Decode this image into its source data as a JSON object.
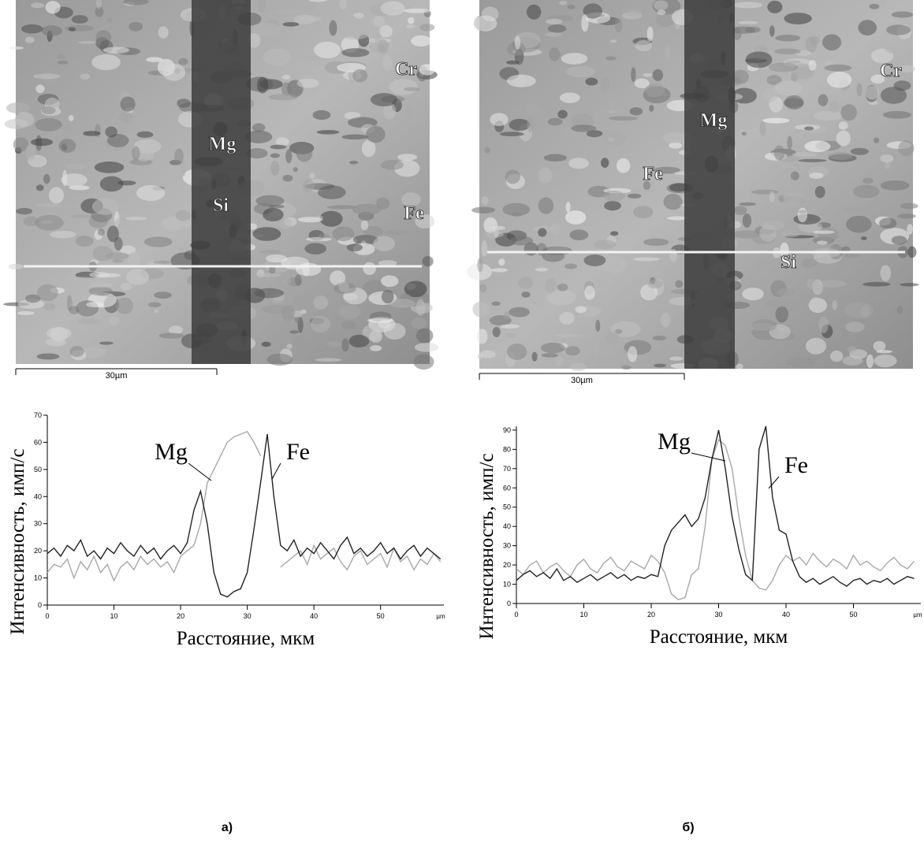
{
  "micrographs": [
    {
      "labels": [
        "Cr",
        "Mg",
        "Si",
        "Fe"
      ],
      "scale_bar": "30µm"
    },
    {
      "labels": [
        "Cr",
        "Mg",
        "Fe",
        "Si"
      ],
      "scale_bar": "30µm"
    }
  ],
  "chart_data": [
    {
      "type": "line",
      "caption": "а)",
      "x_label": "Расстояние, мкм",
      "y_label": "Интенсивность, имп/с",
      "x_unit": "µm",
      "xlim": [
        0,
        59.5
      ],
      "ylim": [
        0,
        70
      ],
      "xticks": [
        0,
        10,
        20,
        30,
        40,
        50
      ],
      "yticks": [
        0,
        10,
        20,
        30,
        40,
        50,
        60,
        70
      ],
      "x": [
        0,
        1,
        2,
        3,
        4,
        5,
        6,
        7,
        8,
        9,
        10,
        11,
        12,
        13,
        14,
        15,
        16,
        17,
        18,
        19,
        20,
        21,
        22,
        23,
        24,
        25,
        26,
        27,
        28,
        29,
        30,
        31,
        32,
        33,
        34,
        35,
        36,
        37,
        38,
        39,
        40,
        41,
        42,
        43,
        44,
        45,
        46,
        47,
        48,
        49,
        50,
        51,
        52,
        53,
        54,
        55,
        56,
        57,
        58,
        59
      ],
      "series": [
        {
          "name": "Mg",
          "color": "#a8a8a8",
          "values": [
            12,
            15,
            14,
            17,
            10,
            16,
            13,
            18,
            12,
            15,
            9,
            14,
            16,
            13,
            18,
            15,
            17,
            14,
            16,
            12,
            18,
            20,
            22,
            30,
            45,
            50,
            55,
            60,
            62,
            63,
            64,
            60,
            55,
            null,
            null,
            14,
            16,
            18,
            20,
            15,
            22,
            17,
            19,
            21,
            16,
            13,
            18,
            20,
            15,
            17,
            19,
            14,
            21,
            16,
            18,
            13,
            17,
            15,
            19,
            16
          ]
        },
        {
          "name": "Fe",
          "color": "#222222",
          "values": [
            19,
            21,
            18,
            22,
            20,
            24,
            18,
            20,
            17,
            21,
            19,
            23,
            20,
            18,
            22,
            19,
            21,
            17,
            20,
            22,
            19,
            23,
            35,
            42,
            30,
            12,
            4,
            3,
            5,
            6,
            12,
            28,
            45,
            63,
            40,
            22,
            20,
            24,
            18,
            21,
            19,
            23,
            20,
            17,
            22,
            25,
            19,
            21,
            18,
            20,
            23,
            19,
            21,
            17,
            20,
            22,
            18,
            21,
            19,
            17
          ]
        }
      ]
    },
    {
      "type": "line",
      "caption": "б)",
      "x_label": "Расстояние, мкм",
      "y_label": "Интенсивность, имп/с",
      "x_unit": "µm",
      "xlim": [
        0,
        60
      ],
      "ylim": [
        0,
        92
      ],
      "xticks": [
        0,
        10,
        20,
        30,
        40,
        50
      ],
      "yticks": [
        0,
        10,
        20,
        30,
        40,
        50,
        60,
        70,
        80,
        90
      ],
      "x": [
        0,
        1,
        2,
        3,
        4,
        5,
        6,
        7,
        8,
        9,
        10,
        11,
        12,
        13,
        14,
        15,
        16,
        17,
        18,
        19,
        20,
        21,
        22,
        23,
        24,
        25,
        26,
        27,
        28,
        29,
        30,
        31,
        32,
        33,
        34,
        35,
        36,
        37,
        38,
        39,
        40,
        41,
        42,
        43,
        44,
        45,
        46,
        47,
        48,
        49,
        50,
        51,
        52,
        53,
        54,
        55,
        56,
        57,
        58,
        59
      ],
      "series": [
        {
          "name": "Mg",
          "color": "#a8a8a8",
          "values": [
            18,
            15,
            20,
            22,
            16,
            19,
            21,
            17,
            14,
            20,
            23,
            18,
            16,
            21,
            24,
            19,
            17,
            22,
            20,
            18,
            25,
            22,
            16,
            5,
            2,
            3,
            15,
            18,
            40,
            75,
            85,
            82,
            70,
            45,
            25,
            12,
            8,
            7,
            12,
            20,
            25,
            22,
            24,
            20,
            26,
            22,
            19,
            23,
            21,
            18,
            25,
            20,
            22,
            19,
            17,
            21,
            24,
            20,
            18,
            22
          ]
        },
        {
          "name": "Fe",
          "color": "#222222",
          "values": [
            12,
            15,
            17,
            14,
            16,
            13,
            18,
            12,
            14,
            11,
            13,
            15,
            12,
            14,
            16,
            13,
            15,
            12,
            14,
            13,
            15,
            14,
            30,
            38,
            42,
            46,
            40,
            44,
            55,
            75,
            90,
            70,
            45,
            28,
            15,
            12,
            80,
            92,
            55,
            38,
            36,
            22,
            14,
            11,
            13,
            10,
            12,
            14,
            11,
            9,
            12,
            13,
            10,
            12,
            11,
            13,
            10,
            12,
            14,
            13
          ]
        }
      ]
    }
  ]
}
